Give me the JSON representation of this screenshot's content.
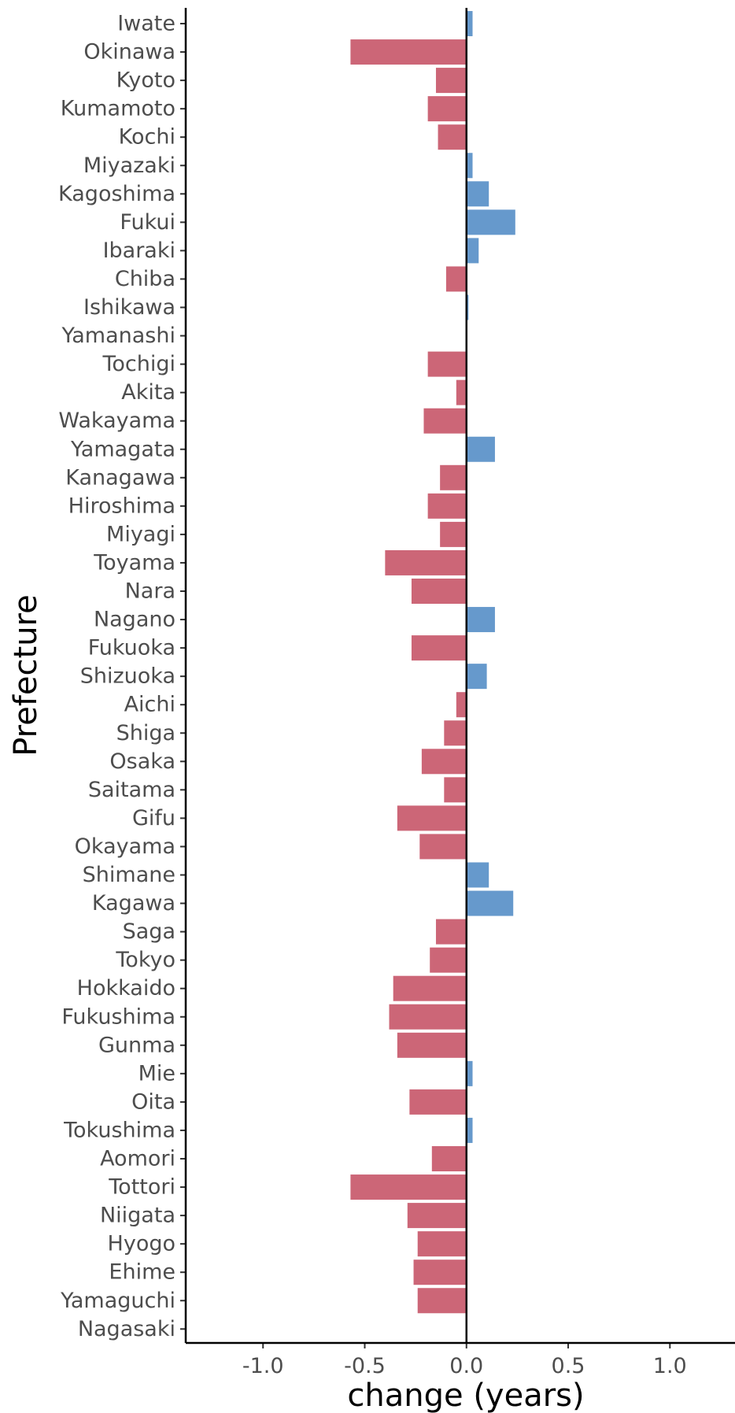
{
  "chart_data": {
    "type": "bar",
    "orientation": "horizontal",
    "xlabel": "change (years)",
    "ylabel": "Prefecture",
    "xlim": [
      -1.38,
      1.32
    ],
    "xticks": [
      -1.0,
      -0.5,
      0.0,
      0.5,
      1.0
    ],
    "xtick_labels": [
      "-1.0",
      "-0.5",
      "0.0",
      "0.5",
      "1.0"
    ],
    "grid": false,
    "legend": "none",
    "colors": {
      "positive": "#6699cc",
      "negative": "#cc6677",
      "zero_line": "#000000"
    },
    "categories": [
      "Iwate",
      "Okinawa",
      "Kyoto",
      "Kumamoto",
      "Kochi",
      "Miyazaki",
      "Kagoshima",
      "Fukui",
      "Ibaraki",
      "Chiba",
      "Ishikawa",
      "Yamanashi",
      "Tochigi",
      "Akita",
      "Wakayama",
      "Yamagata",
      "Kanagawa",
      "Hiroshima",
      "Miyagi",
      "Toyama",
      "Nara",
      "Nagano",
      "Fukuoka",
      "Shizuoka",
      "Aichi",
      "Shiga",
      "Osaka",
      "Saitama",
      "Gifu",
      "Okayama",
      "Shimane",
      "Kagawa",
      "Saga",
      "Tokyo",
      "Hokkaido",
      "Fukushima",
      "Gunma",
      "Mie",
      "Oita",
      "Tokushima",
      "Aomori",
      "Tottori",
      "Niigata",
      "Hyogo",
      "Ehime",
      "Yamaguchi",
      "Nagasaki"
    ],
    "values": [
      0.03,
      -0.57,
      -0.15,
      -0.19,
      -0.14,
      0.03,
      0.11,
      0.24,
      0.06,
      -0.1,
      0.01,
      0.0,
      -0.19,
      -0.05,
      -0.21,
      0.14,
      -0.13,
      -0.19,
      -0.13,
      -0.4,
      -0.27,
      0.14,
      -0.27,
      0.1,
      -0.05,
      -0.11,
      -0.22,
      -0.11,
      -0.34,
      -0.23,
      0.11,
      0.23,
      -0.15,
      -0.18,
      -0.36,
      -0.38,
      -0.34,
      0.03,
      -0.28,
      0.03,
      -0.17,
      -0.57,
      -0.29,
      -0.24,
      -0.26,
      -0.24,
      0.0
    ]
  }
}
